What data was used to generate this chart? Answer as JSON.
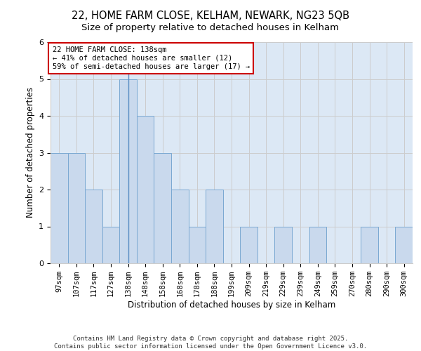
{
  "title_line1": "22, HOME FARM CLOSE, KELHAM, NEWARK, NG23 5QB",
  "title_line2": "Size of property relative to detached houses in Kelham",
  "xlabel": "Distribution of detached houses by size in Kelham",
  "ylabel": "Number of detached properties",
  "bar_labels": [
    "97sqm",
    "107sqm",
    "117sqm",
    "127sqm",
    "138sqm",
    "148sqm",
    "158sqm",
    "168sqm",
    "178sqm",
    "188sqm",
    "199sqm",
    "209sqm",
    "219sqm",
    "229sqm",
    "239sqm",
    "249sqm",
    "259sqm",
    "270sqm",
    "280sqm",
    "290sqm",
    "300sqm"
  ],
  "bar_values": [
    3,
    3,
    2,
    1,
    5,
    4,
    3,
    2,
    1,
    2,
    0,
    1,
    0,
    1,
    0,
    1,
    0,
    0,
    1,
    0,
    1
  ],
  "highlight_index": 4,
  "bar_color": "#c9d9ed",
  "bar_edge_color": "#7aa8d2",
  "highlight_line_color": "#5b8ec4",
  "annotation_box_color": "#ffffff",
  "annotation_box_edge_color": "#cc0000",
  "annotation_text": "22 HOME FARM CLOSE: 138sqm\n← 41% of detached houses are smaller (12)\n59% of semi-detached houses are larger (17) →",
  "ylim": [
    0,
    6
  ],
  "yticks": [
    0,
    1,
    2,
    3,
    4,
    5,
    6
  ],
  "grid_color": "#cccccc",
  "background_color": "#dce8f5",
  "footer_text": "Contains HM Land Registry data © Crown copyright and database right 2025.\nContains public sector information licensed under the Open Government Licence v3.0."
}
